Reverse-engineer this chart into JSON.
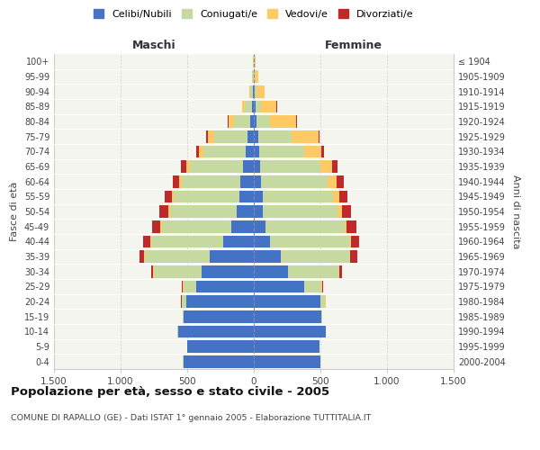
{
  "age_groups": [
    "0-4",
    "5-9",
    "10-14",
    "15-19",
    "20-24",
    "25-29",
    "30-34",
    "35-39",
    "40-44",
    "45-49",
    "50-54",
    "55-59",
    "60-64",
    "65-69",
    "70-74",
    "75-79",
    "80-84",
    "85-89",
    "90-94",
    "95-99",
    "100+"
  ],
  "birth_years": [
    "2000-2004",
    "1995-1999",
    "1990-1994",
    "1985-1989",
    "1980-1984",
    "1975-1979",
    "1970-1974",
    "1965-1969",
    "1960-1964",
    "1955-1959",
    "1950-1954",
    "1945-1949",
    "1940-1944",
    "1935-1939",
    "1930-1934",
    "1925-1929",
    "1920-1924",
    "1915-1919",
    "1910-1914",
    "1905-1909",
    "≤ 1904"
  ],
  "males": {
    "celibi": [
      530,
      500,
      570,
      530,
      510,
      430,
      390,
      330,
      230,
      170,
      130,
      110,
      100,
      80,
      60,
      50,
      30,
      15,
      5,
      3,
      2
    ],
    "coniugati": [
      2,
      2,
      2,
      5,
      30,
      100,
      360,
      490,
      540,
      520,
      500,
      490,
      440,
      400,
      320,
      250,
      120,
      50,
      20,
      8,
      2
    ],
    "vedovi": [
      0,
      0,
      0,
      0,
      2,
      3,
      5,
      5,
      8,
      10,
      12,
      15,
      18,
      25,
      30,
      45,
      40,
      22,
      8,
      4,
      1
    ],
    "divorziati": [
      0,
      0,
      0,
      0,
      5,
      10,
      15,
      35,
      55,
      65,
      65,
      55,
      50,
      40,
      25,
      15,
      5,
      2,
      1,
      0,
      0
    ]
  },
  "females": {
    "nubili": [
      500,
      490,
      540,
      510,
      500,
      380,
      260,
      200,
      120,
      90,
      70,
      65,
      55,
      50,
      40,
      35,
      20,
      12,
      5,
      3,
      2
    ],
    "coniugate": [
      2,
      2,
      2,
      5,
      35,
      130,
      380,
      520,
      600,
      590,
      560,
      530,
      500,
      450,
      340,
      250,
      100,
      40,
      15,
      5,
      1
    ],
    "vedove": [
      0,
      0,
      0,
      0,
      3,
      3,
      5,
      5,
      8,
      15,
      30,
      45,
      65,
      90,
      130,
      200,
      200,
      120,
      60,
      25,
      8
    ],
    "divorziate": [
      0,
      0,
      0,
      0,
      5,
      10,
      20,
      50,
      65,
      75,
      70,
      65,
      55,
      40,
      20,
      10,
      5,
      2,
      1,
      0,
      0
    ]
  },
  "colors": {
    "celibi": "#4472c4",
    "coniugati": "#c5d9a0",
    "vedovi": "#ffc966",
    "divorziati": "#c0292b"
  },
  "xlim": 1500,
  "title": "Popolazione per età, sesso e stato civile - 2005",
  "subtitle": "COMUNE DI RAPALLO (GE) - Dati ISTAT 1° gennaio 2005 - Elaborazione TUTTITALIA.IT",
  "xlabel_left": "Maschi",
  "xlabel_right": "Femmine",
  "ylabel_left": "Fasce di età",
  "ylabel_right": "Anni di nascita",
  "legend_labels": [
    "Celibi/Nubili",
    "Coniugati/e",
    "Vedovi/e",
    "Divorziati/e"
  ],
  "xticks": [
    -1500,
    -1000,
    -500,
    0,
    500,
    1000,
    1500
  ],
  "xtick_labels": [
    "1.500",
    "1.000",
    "500",
    "0",
    "500",
    "1.000",
    "1.500"
  ],
  "bg_color": "#f5f5f0",
  "bar_edge_color": "white"
}
